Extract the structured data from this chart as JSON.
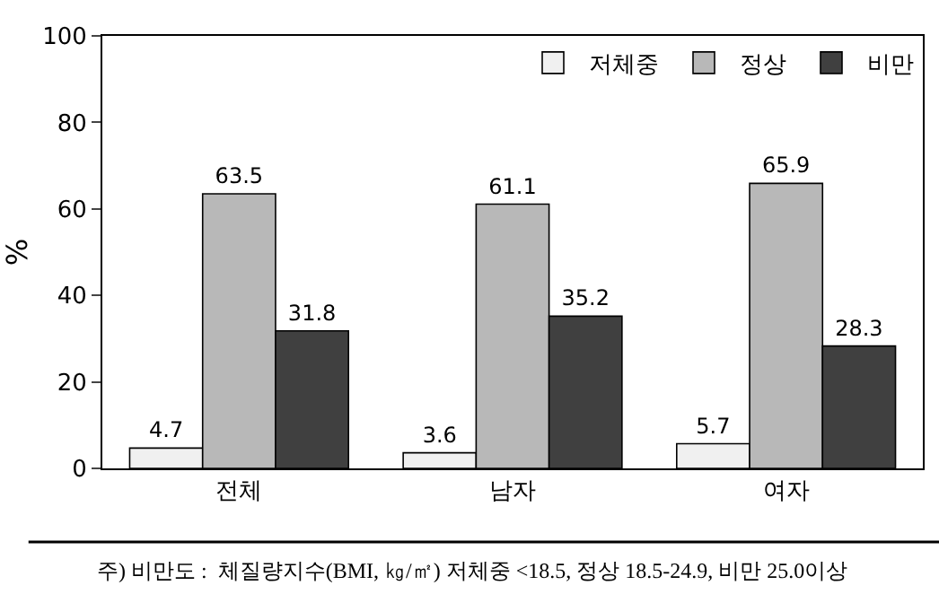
{
  "chart_data": {
    "type": "bar",
    "ylabel": "%",
    "categories": [
      "전체",
      "남자",
      "여자"
    ],
    "series": [
      {
        "name": "저체중",
        "color": "#f0f0f0",
        "values": [
          4.7,
          3.6,
          5.7
        ]
      },
      {
        "name": "정상",
        "color": "#b8b8b8",
        "values": [
          63.5,
          61.1,
          65.9
        ]
      },
      {
        "name": "비만",
        "color": "#404040",
        "values": [
          31.8,
          35.2,
          28.3
        ]
      }
    ],
    "ylim": [
      0,
      100
    ],
    "yticks": [
      0,
      20,
      40,
      60,
      80,
      100
    ],
    "legend": "top right",
    "data_labels": true,
    "annotations": [
      "주) 비만도 :  체질량지수(BMI, ㎏/㎡) 저체중 <18.5, 정상 18.5-24.9, 비만 25.0이상"
    ]
  }
}
